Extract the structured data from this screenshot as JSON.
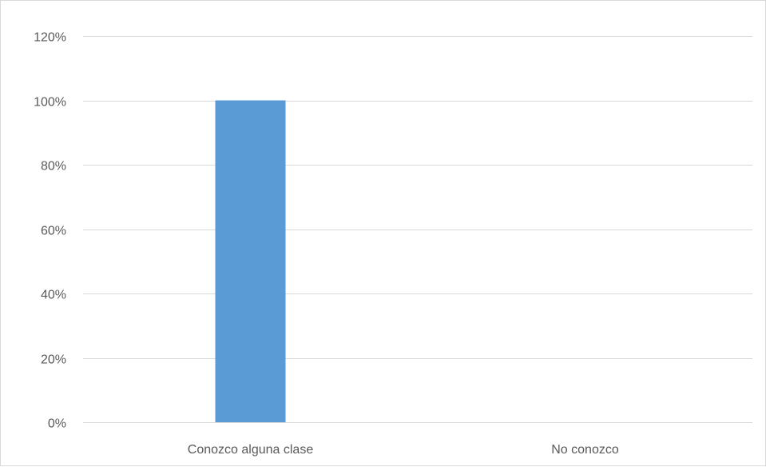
{
  "chart_data": {
    "type": "bar",
    "categories": [
      "Conozco alguna clase",
      "No conozco"
    ],
    "values": [
      100,
      0
    ],
    "value_unit": "%",
    "ylim": [
      0,
      120
    ],
    "y_ticks": [
      0,
      20,
      40,
      60,
      80,
      100,
      120
    ],
    "y_tick_labels": [
      "0%",
      "20%",
      "40%",
      "60%",
      "80%",
      "100%",
      "120%"
    ],
    "title": "",
    "xlabel": "",
    "ylabel": "",
    "grid": true,
    "legend": "none",
    "colors": {
      "bar": "#5b9bd5",
      "gridline": "#d9d9d9",
      "axis_line": "#d9d9d9",
      "tick_text": "#595959",
      "border": "#d9d9d9"
    }
  }
}
